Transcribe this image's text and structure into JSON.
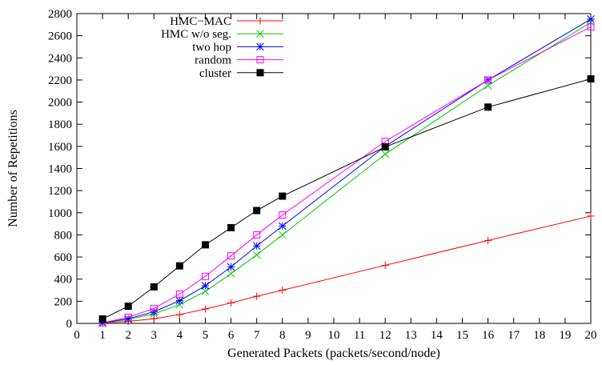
{
  "chart_data": {
    "type": "line",
    "title": "",
    "xlabel": "Generated Packets (packets/second/node)",
    "ylabel": "Number of Repetitions",
    "xlim": [
      0,
      20
    ],
    "ylim": [
      0,
      2800
    ],
    "xticks": [
      0,
      1,
      2,
      3,
      4,
      5,
      6,
      7,
      8,
      9,
      10,
      11,
      12,
      13,
      14,
      15,
      16,
      17,
      18,
      19,
      20
    ],
    "yticks": [
      0,
      200,
      400,
      600,
      800,
      1000,
      1200,
      1400,
      1600,
      1800,
      2000,
      2200,
      2400,
      2600,
      2800
    ],
    "grid": false,
    "legend_position": "top-left",
    "series": [
      {
        "name": "HMC−MAC",
        "color": "#ff0000",
        "marker": "plus",
        "x": [
          1,
          2,
          3,
          4,
          5,
          6,
          7,
          8,
          12,
          16,
          20
        ],
        "y": [
          5,
          18,
          42,
          80,
          130,
          185,
          245,
          300,
          525,
          750,
          970
        ]
      },
      {
        "name": "HMC w/o seg.",
        "color": "#00cc00",
        "marker": "cross",
        "x": [
          1,
          2,
          3,
          4,
          5,
          6,
          7,
          8,
          12,
          16,
          20
        ],
        "y": [
          5,
          35,
          85,
          170,
          290,
          450,
          620,
          800,
          1530,
          2150,
          2720
        ]
      },
      {
        "name": "two hop",
        "color": "#0000ff",
        "marker": "star",
        "x": [
          1,
          2,
          3,
          4,
          5,
          6,
          7,
          8,
          12,
          16,
          20
        ],
        "y": [
          5,
          42,
          105,
          205,
          340,
          510,
          700,
          880,
          1600,
          2200,
          2750
        ]
      },
      {
        "name": "random",
        "color": "#ff00ff",
        "marker": "open-square",
        "x": [
          1,
          2,
          3,
          4,
          5,
          6,
          7,
          8,
          12,
          16,
          20
        ],
        "y": [
          5,
          55,
          135,
          265,
          425,
          610,
          800,
          980,
          1645,
          2200,
          2680
        ]
      },
      {
        "name": "cluster",
        "color": "#000000",
        "marker": "filled-square",
        "x": [
          1,
          2,
          3,
          4,
          5,
          6,
          7,
          8,
          12,
          16,
          20
        ],
        "y": [
          40,
          155,
          330,
          520,
          710,
          865,
          1020,
          1150,
          1595,
          1955,
          2210
        ]
      }
    ]
  }
}
